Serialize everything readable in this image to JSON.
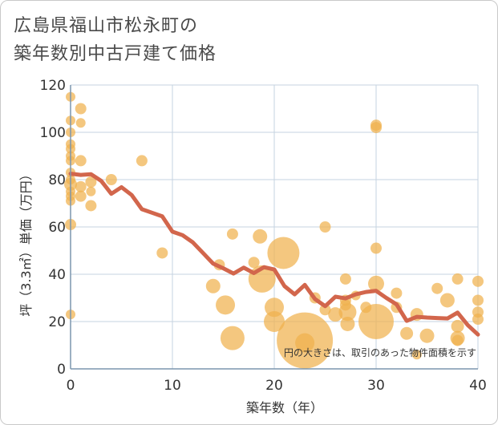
{
  "title_line1": "広島県福山市松永町の",
  "title_line2": "築年数別中古戸建て価格",
  "note": "円の大きさは、取引のあった物件面積を示す",
  "chart_data": {
    "type": "scatter",
    "xlabel": "築年数（年）",
    "ylabel": "坪（3.3㎡）単価（万円）",
    "xlim": [
      0,
      40
    ],
    "ylim": [
      0,
      120
    ],
    "xticks": [
      0,
      10,
      20,
      30,
      40
    ],
    "yticks": [
      0,
      20,
      40,
      60,
      80,
      100,
      120
    ],
    "grid": true,
    "colors": {
      "bubble": "#f0b24e",
      "line": "#d2664c",
      "grid": "#c5d3e0",
      "axis": "#7c95ad"
    },
    "bubbles": [
      {
        "x": 0,
        "y": 115,
        "s": 6
      },
      {
        "x": 0,
        "y": 105,
        "s": 6
      },
      {
        "x": 0,
        "y": 100,
        "s": 6
      },
      {
        "x": 0,
        "y": 95,
        "s": 6
      },
      {
        "x": 0,
        "y": 93,
        "s": 6
      },
      {
        "x": 0,
        "y": 90,
        "s": 6
      },
      {
        "x": 0,
        "y": 88,
        "s": 6
      },
      {
        "x": 0,
        "y": 83,
        "s": 6
      },
      {
        "x": 0,
        "y": 80,
        "s": 6
      },
      {
        "x": 0,
        "y": 78,
        "s": 8
      },
      {
        "x": 0,
        "y": 75,
        "s": 6
      },
      {
        "x": 0,
        "y": 73,
        "s": 6
      },
      {
        "x": 0,
        "y": 71,
        "s": 6
      },
      {
        "x": 0,
        "y": 61,
        "s": 7
      },
      {
        "x": 0,
        "y": 23,
        "s": 6
      },
      {
        "x": 1,
        "y": 110,
        "s": 7
      },
      {
        "x": 1,
        "y": 104,
        "s": 6
      },
      {
        "x": 1,
        "y": 88,
        "s": 7
      },
      {
        "x": 1,
        "y": 77,
        "s": 7
      },
      {
        "x": 1,
        "y": 73,
        "s": 7
      },
      {
        "x": 2,
        "y": 79,
        "s": 7
      },
      {
        "x": 2,
        "y": 75,
        "s": 6
      },
      {
        "x": 2,
        "y": 69,
        "s": 7
      },
      {
        "x": 4,
        "y": 80,
        "s": 7
      },
      {
        "x": 7,
        "y": 88,
        "s": 7
      },
      {
        "x": 9,
        "y": 49,
        "s": 7
      },
      {
        "x": 14,
        "y": 35,
        "s": 9
      },
      {
        "x": 14.6,
        "y": 44,
        "s": 7
      },
      {
        "x": 15.2,
        "y": 27,
        "s": 12
      },
      {
        "x": 15.9,
        "y": 57,
        "s": 7
      },
      {
        "x": 15.9,
        "y": 13,
        "s": 15
      },
      {
        "x": 18,
        "y": 45,
        "s": 7
      },
      {
        "x": 18.6,
        "y": 56,
        "s": 9
      },
      {
        "x": 18.8,
        "y": 38,
        "s": 17
      },
      {
        "x": 20,
        "y": 26,
        "s": 12
      },
      {
        "x": 20,
        "y": 20,
        "s": 13
      },
      {
        "x": 20.9,
        "y": 49,
        "s": 20
      },
      {
        "x": 23,
        "y": 12,
        "s": 35
      },
      {
        "x": 23,
        "y": 11,
        "s": 12
      },
      {
        "x": 24,
        "y": 30,
        "s": 7
      },
      {
        "x": 25,
        "y": 60,
        "s": 7
      },
      {
        "x": 25,
        "y": 25,
        "s": 7
      },
      {
        "x": 26,
        "y": 23,
        "s": 9
      },
      {
        "x": 27,
        "y": 38,
        "s": 7
      },
      {
        "x": 27,
        "y": 29,
        "s": 7
      },
      {
        "x": 27,
        "y": 27,
        "s": 7
      },
      {
        "x": 27.2,
        "y": 24,
        "s": 11
      },
      {
        "x": 27.2,
        "y": 19,
        "s": 9
      },
      {
        "x": 28,
        "y": 31,
        "s": 6
      },
      {
        "x": 29,
        "y": 26,
        "s": 7
      },
      {
        "x": 30,
        "y": 103,
        "s": 7
      },
      {
        "x": 30,
        "y": 102,
        "s": 7
      },
      {
        "x": 30,
        "y": 51,
        "s": 7
      },
      {
        "x": 30,
        "y": 36,
        "s": 10
      },
      {
        "x": 30,
        "y": 20,
        "s": 22
      },
      {
        "x": 32,
        "y": 32,
        "s": 7
      },
      {
        "x": 32,
        "y": 26,
        "s": 7
      },
      {
        "x": 33,
        "y": 15,
        "s": 8
      },
      {
        "x": 34,
        "y": 23,
        "s": 8
      },
      {
        "x": 34,
        "y": 6,
        "s": 6
      },
      {
        "x": 35,
        "y": 14,
        "s": 9
      },
      {
        "x": 36,
        "y": 34,
        "s": 7
      },
      {
        "x": 37,
        "y": 29,
        "s": 9
      },
      {
        "x": 38,
        "y": 38,
        "s": 7
      },
      {
        "x": 38,
        "y": 18,
        "s": 8
      },
      {
        "x": 38,
        "y": 13,
        "s": 9
      },
      {
        "x": 38,
        "y": 12,
        "s": 7
      },
      {
        "x": 40,
        "y": 37,
        "s": 7
      },
      {
        "x": 40,
        "y": 29,
        "s": 7
      },
      {
        "x": 40,
        "y": 24,
        "s": 7
      },
      {
        "x": 40,
        "y": 21,
        "s": 7
      }
    ],
    "trend": {
      "x": [
        0,
        1,
        2,
        3,
        4,
        5,
        6,
        7,
        8,
        9,
        10,
        11,
        12,
        13,
        14,
        15,
        16,
        17,
        18,
        19,
        20,
        21,
        22,
        23,
        24,
        25,
        26,
        27,
        28,
        29,
        30,
        31,
        32,
        33,
        34,
        35,
        36,
        37,
        38,
        39,
        40
      ],
      "y": [
        82.5,
        82,
        82.3,
        79.5,
        74,
        76.8,
        73.5,
        67.5,
        66,
        64.5,
        58,
        56.5,
        53.5,
        49,
        44.5,
        42.5,
        40.3,
        42.8,
        40.5,
        43,
        42,
        35,
        31.5,
        35.5,
        29.5,
        26.5,
        30.5,
        29.8,
        31.5,
        32.5,
        33,
        30,
        27.3,
        20.3,
        22,
        21.7,
        21.5,
        21.3,
        23.8,
        18.5,
        14.5
      ]
    }
  }
}
